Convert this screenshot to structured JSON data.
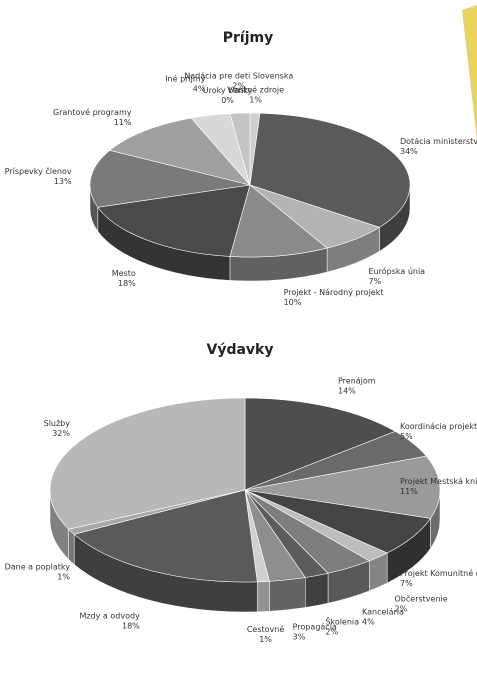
{
  "chart_data": [
    {
      "type": "pie",
      "title": "Príjmy",
      "categories": [
        "Vlastné zdroje",
        "Dotácia ministerstva",
        "Európska únia",
        "Projekt - Národný projekt",
        "Mesto",
        "Príspevky členov",
        "Grantové programy",
        "Iné príjmy",
        "Úroky banky",
        "Nadácia pre deti Slovenska"
      ],
      "values": [
        1,
        34,
        7,
        10,
        18,
        13,
        11,
        4,
        0,
        2
      ],
      "value_labels": [
        "1%",
        "34%",
        "7%",
        "10%",
        "18%",
        "13%",
        "11%",
        "4%",
        "0%",
        "2%"
      ],
      "colors": [
        "#cfcfcf",
        "#5a5a5a",
        "#b4b4b4",
        "#8a8a8a",
        "#4a4a4a",
        "#7a7a7a",
        "#a0a0a0",
        "#d8d8d8",
        "#e6e6e6",
        "#c4c4c4"
      ]
    },
    {
      "type": "pie",
      "title": "Výdavky",
      "categories": [
        "Prenájom",
        "Koordinácia projektov",
        "Projekt Mestská knižnica",
        "Projekt Komunitné centrum",
        "Občerstvenie",
        "Kancelária",
        "Školenia",
        "Propagácia",
        "Cestovné",
        "Mzdy a odvody",
        "Dane a poplatky",
        "Služby"
      ],
      "values": [
        14,
        5,
        11,
        7,
        2,
        4,
        2,
        3,
        1,
        18,
        1,
        32
      ],
      "value_labels": [
        "14%",
        "5%",
        "11%",
        "7%",
        "2%",
        "4%",
        "2%",
        "3%",
        "1%",
        "18%",
        "1%",
        "32%"
      ],
      "colors": [
        "#4e4e4e",
        "#6a6a6a",
        "#9a9a9a",
        "#444444",
        "#bdbdbd",
        "#7e7e7e",
        "#5c5c5c",
        "#8e8e8e",
        "#d0d0d0",
        "#5a5a5a",
        "#a8a8a8",
        "#b8b8b8"
      ]
    }
  ]
}
